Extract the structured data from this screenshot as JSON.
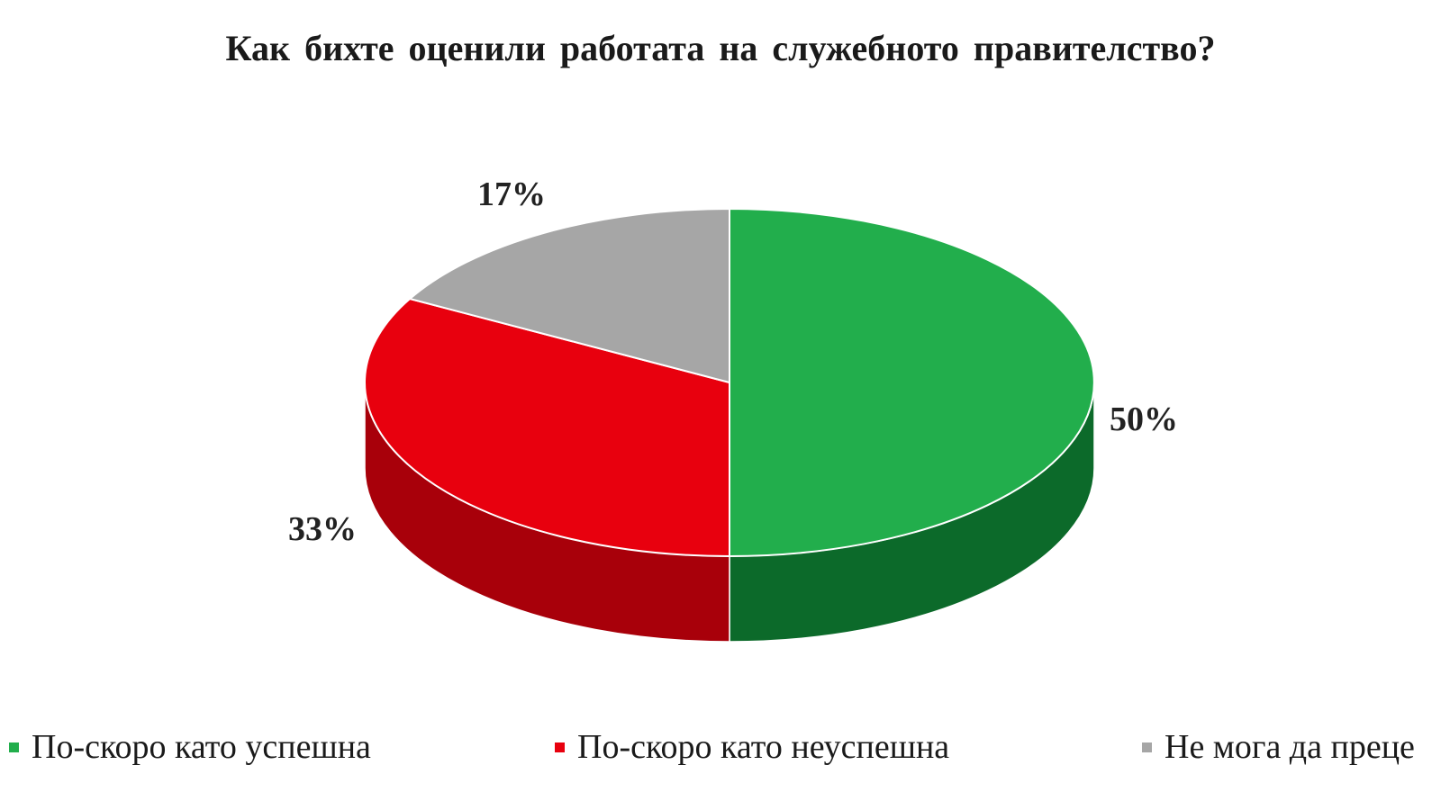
{
  "chart_data": {
    "type": "pie",
    "title": "Как бихте оценили работата на служебното правителство?",
    "slices": [
      {
        "label": "По-скоро като успешна",
        "value": 50,
        "value_label": "50%",
        "color": "#22AE4C",
        "side_color": "#0C6A2A"
      },
      {
        "label": "По-скоро като неуспешна",
        "value": 33,
        "value_label": "33%",
        "color": "#E8000E",
        "side_color": "#A8000A"
      },
      {
        "label": "Не мога да преце",
        "value": 17,
        "value_label": "17%",
        "color": "#A6A6A6",
        "side_color": "#7A7A7A"
      }
    ],
    "start_angle_deg": 0,
    "direction": "clockwise-from-top",
    "style": "3d",
    "legend_position": "bottom"
  }
}
